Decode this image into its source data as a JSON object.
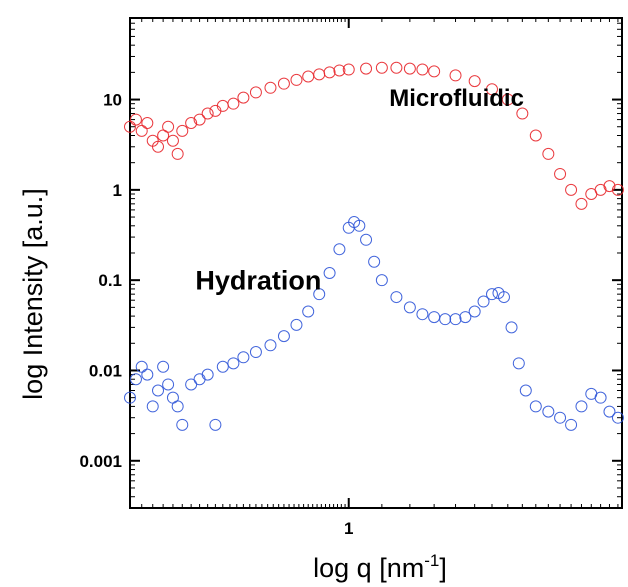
{
  "chart_data": {
    "type": "scatter",
    "title": "",
    "xlabel": "log q [nm",
    "xlabel_sup": "-1",
    "xlabel_close": "]",
    "ylabel": "log Intensity [a.u.]",
    "xscale": "log",
    "yscale": "log",
    "xlim": [
      0.3,
      4.5
    ],
    "ylim": [
      0.0003,
      80
    ],
    "x_ticks": [
      {
        "value": 1,
        "label": "1"
      }
    ],
    "y_ticks": [
      {
        "value": 10,
        "label": "10"
      },
      {
        "value": 1,
        "label": "1"
      },
      {
        "value": 0.1,
        "label": "0.1"
      },
      {
        "value": 0.01,
        "label": "0.01"
      },
      {
        "value": 0.001,
        "label": "0.001"
      }
    ],
    "marker": "open-circle",
    "grid": false,
    "annotations": [
      {
        "text": "Microfluidic",
        "x": 1.25,
        "y": 10.5,
        "size": "medium"
      },
      {
        "text": "Hydration",
        "x": 0.43,
        "y": 0.1,
        "size": "large"
      }
    ],
    "series": [
      {
        "color": "#e8262b",
        "points": [
          [
            0.3,
            5
          ],
          [
            0.31,
            6
          ],
          [
            0.32,
            4.5
          ],
          [
            0.33,
            5.5
          ],
          [
            0.34,
            3.5
          ],
          [
            0.35,
            3
          ],
          [
            0.36,
            4
          ],
          [
            0.37,
            5
          ],
          [
            0.38,
            3.5
          ],
          [
            0.39,
            2.5
          ],
          [
            0.4,
            4.5
          ],
          [
            0.42,
            5.5
          ],
          [
            0.44,
            6
          ],
          [
            0.46,
            7
          ],
          [
            0.48,
            7.5
          ],
          [
            0.5,
            8.5
          ],
          [
            0.53,
            9
          ],
          [
            0.56,
            10.5
          ],
          [
            0.6,
            12
          ],
          [
            0.65,
            13.5
          ],
          [
            0.7,
            15
          ],
          [
            0.75,
            16.5
          ],
          [
            0.8,
            18
          ],
          [
            0.85,
            19
          ],
          [
            0.9,
            20
          ],
          [
            0.95,
            21
          ],
          [
            1.0,
            21.5
          ],
          [
            1.1,
            22
          ],
          [
            1.2,
            22.5
          ],
          [
            1.3,
            22.5
          ],
          [
            1.4,
            22
          ],
          [
            1.5,
            21.5
          ],
          [
            1.6,
            20.5
          ],
          [
            1.8,
            18.5
          ],
          [
            2.0,
            16
          ],
          [
            2.2,
            13
          ],
          [
            2.4,
            10
          ],
          [
            2.6,
            7
          ],
          [
            2.8,
            4
          ],
          [
            3.0,
            2.5
          ],
          [
            3.2,
            1.5
          ],
          [
            3.4,
            1.0
          ],
          [
            3.6,
            0.7
          ],
          [
            3.8,
            0.9
          ],
          [
            4.0,
            1.0
          ],
          [
            4.2,
            1.1
          ],
          [
            4.4,
            1.0
          ]
        ]
      },
      {
        "color": "#2f55d8",
        "points": [
          [
            0.3,
            0.005
          ],
          [
            0.31,
            0.008
          ],
          [
            0.32,
            0.011
          ],
          [
            0.33,
            0.009
          ],
          [
            0.34,
            0.004
          ],
          [
            0.35,
            0.006
          ],
          [
            0.36,
            0.011
          ],
          [
            0.37,
            0.007
          ],
          [
            0.38,
            0.005
          ],
          [
            0.39,
            0.004
          ],
          [
            0.4,
            0.0025
          ],
          [
            0.42,
            0.007
          ],
          [
            0.44,
            0.008
          ],
          [
            0.46,
            0.009
          ],
          [
            0.48,
            0.0025
          ],
          [
            0.5,
            0.011
          ],
          [
            0.53,
            0.012
          ],
          [
            0.56,
            0.014
          ],
          [
            0.6,
            0.016
          ],
          [
            0.65,
            0.019
          ],
          [
            0.7,
            0.024
          ],
          [
            0.75,
            0.032
          ],
          [
            0.8,
            0.045
          ],
          [
            0.85,
            0.07
          ],
          [
            0.9,
            0.12
          ],
          [
            0.95,
            0.22
          ],
          [
            1.0,
            0.38
          ],
          [
            1.03,
            0.44
          ],
          [
            1.06,
            0.4
          ],
          [
            1.1,
            0.28
          ],
          [
            1.15,
            0.16
          ],
          [
            1.2,
            0.1
          ],
          [
            1.3,
            0.065
          ],
          [
            1.4,
            0.05
          ],
          [
            1.5,
            0.042
          ],
          [
            1.6,
            0.039
          ],
          [
            1.7,
            0.037
          ],
          [
            1.8,
            0.037
          ],
          [
            1.9,
            0.039
          ],
          [
            2.0,
            0.045
          ],
          [
            2.1,
            0.058
          ],
          [
            2.2,
            0.07
          ],
          [
            2.28,
            0.072
          ],
          [
            2.35,
            0.065
          ],
          [
            2.45,
            0.03
          ],
          [
            2.55,
            0.012
          ],
          [
            2.65,
            0.006
          ],
          [
            2.8,
            0.004
          ],
          [
            3.0,
            0.0035
          ],
          [
            3.2,
            0.003
          ],
          [
            3.4,
            0.0025
          ],
          [
            3.6,
            0.004
          ],
          [
            3.8,
            0.0055
          ],
          [
            4.0,
            0.005
          ],
          [
            4.2,
            0.0035
          ],
          [
            4.4,
            0.003
          ]
        ]
      }
    ]
  }
}
